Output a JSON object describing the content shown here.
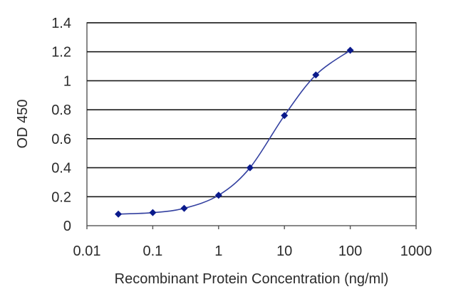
{
  "chart_data": {
    "type": "line",
    "title": "",
    "xlabel": "Recombinant Protein Concentration (ng/ml)",
    "ylabel": "OD 450",
    "x_scale": "log",
    "xlim": [
      0.01,
      1000
    ],
    "ylim": [
      0,
      1.4
    ],
    "x_ticks": [
      "0.01",
      "0.1",
      "1",
      "10",
      "100",
      "1000"
    ],
    "y_ticks": [
      "0",
      "0.2",
      "0.4",
      "0.6",
      "0.8",
      "1",
      "1.2",
      "1.4"
    ],
    "grid": "horizontal",
    "series": [
      {
        "x": [
          0.03,
          0.1,
          0.3,
          1,
          3,
          10,
          30,
          100
        ],
        "y": [
          0.08,
          0.09,
          0.12,
          0.21,
          0.4,
          0.76,
          1.04,
          1.21
        ],
        "color": "#0a1a8c"
      }
    ]
  }
}
